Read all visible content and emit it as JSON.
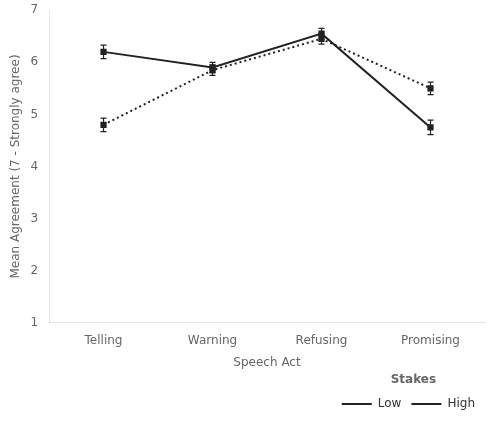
{
  "chart_data": {
    "type": "line",
    "xlabel": "Speech Act",
    "ylabel": "Mean Agreement (7 - Strongly agree)",
    "categories": [
      "Telling",
      "Warning",
      "Refusing",
      "Promising"
    ],
    "series": [
      {
        "name": "Low",
        "color": "#222222",
        "line_style": "solid",
        "marker": "square",
        "values": [
          6.2,
          5.9,
          6.55,
          4.75
        ],
        "errors": [
          0.13,
          0.1,
          0.1,
          0.14
        ]
      },
      {
        "name": "High",
        "color": "#222222",
        "line_style": "dotted",
        "marker": "square",
        "values": [
          4.8,
          5.85,
          6.45,
          5.5
        ],
        "errors": [
          0.13,
          0.1,
          0.1,
          0.12
        ]
      }
    ],
    "ylim": [
      1,
      7
    ],
    "yticks": [
      1,
      2,
      3,
      4,
      5,
      6,
      7
    ],
    "grid": false,
    "legend": "lower right",
    "legend_title": "Stakes"
  }
}
